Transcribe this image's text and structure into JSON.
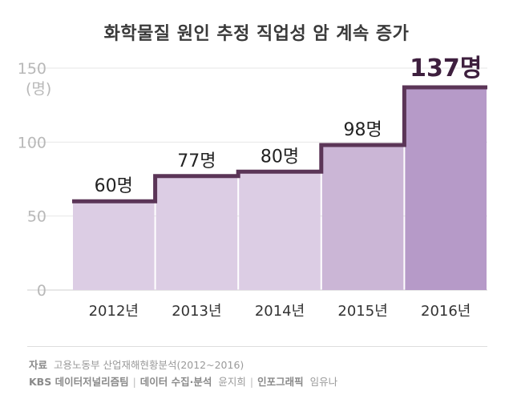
{
  "title": "화학물질 원인 추정 직업성 암 계속 증가",
  "chart_data": {
    "type": "bar",
    "title": "화학물질 원인 추정 직업성 암 계속 증가",
    "categories": [
      "2012년",
      "2013년",
      "2014년",
      "2015년",
      "2016년"
    ],
    "values": [
      60,
      77,
      80,
      98,
      137
    ],
    "data_labels": [
      "60명",
      "77명",
      "80명",
      "98명",
      "137명"
    ],
    "ylabel": "(명)",
    "ylim": [
      0,
      150
    ],
    "yticks": [
      0,
      50,
      100,
      150
    ],
    "grid": true,
    "highlight_index": 4,
    "colors": {
      "bar": "#dccde4",
      "bar_mid": "#cbb6d6",
      "bar_highlight": "#b69ac8",
      "step_line": "#5b3557",
      "grid": "#e6e6e6"
    }
  },
  "footer": {
    "source_label": "자료",
    "source_text": "고용노동부 산업재해현황분석(2012~2016)",
    "org": "KBS 데이터저널리즘팀",
    "data_label": "데이터 수집·분석",
    "data_person": "윤지희",
    "graphic_label": "인포그래픽",
    "graphic_person": "임유나",
    "separator": "|"
  }
}
